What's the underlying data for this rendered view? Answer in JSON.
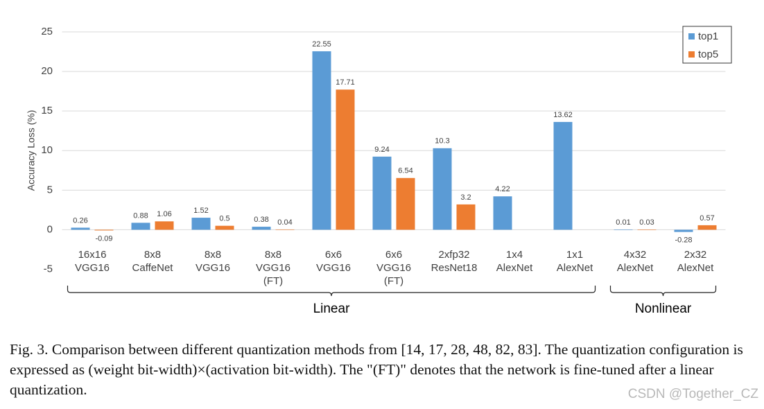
{
  "chart_data": {
    "type": "bar",
    "y_label": "Accuracy Loss (%)",
    "categories": [
      [
        "16x16",
        "VGG16"
      ],
      [
        "8x8",
        "CaffeNet"
      ],
      [
        "8x8",
        "VGG16"
      ],
      [
        "8x8",
        "VGG16",
        "(FT)"
      ],
      [
        "6x6",
        "VGG16"
      ],
      [
        "6x6",
        "VGG16",
        "(FT)"
      ],
      [
        "2xfp32",
        "ResNet18"
      ],
      [
        "1x4",
        "AlexNet"
      ],
      [
        "1x1",
        "AlexNet"
      ],
      [
        "4x32",
        "AlexNet"
      ],
      [
        "2x32",
        "AlexNet"
      ]
    ],
    "series": [
      {
        "name": "top1",
        "color": "#5b9bd5",
        "values": [
          0.26,
          0.88,
          1.52,
          0.38,
          22.55,
          9.24,
          10.3,
          4.22,
          13.62,
          0.01,
          -0.28
        ]
      },
      {
        "name": "top5",
        "color": "#ed7d31",
        "values": [
          -0.09,
          1.06,
          0.5,
          0.04,
          17.71,
          6.54,
          3.2,
          null,
          null,
          0.03,
          0.57
        ]
      }
    ],
    "groups": [
      {
        "label": "Linear",
        "count": 9
      },
      {
        "label": "Nonlinear",
        "count": 2
      }
    ],
    "ylim": [
      -5,
      25
    ],
    "yticks": [
      -5,
      0,
      5,
      10,
      15,
      20,
      25
    ],
    "grid": true,
    "legend": "top-right"
  },
  "caption": "Fig. 3.  Comparison between different quantization methods from [14, 17, 28, 48, 82, 83]. The quantization configuration is expressed as (weight bit-width)×(activation bit-width). The \"(FT)\" denotes that the network is fine-tuned after a linear quantization.",
  "watermark": "CSDN @Together_CZ"
}
